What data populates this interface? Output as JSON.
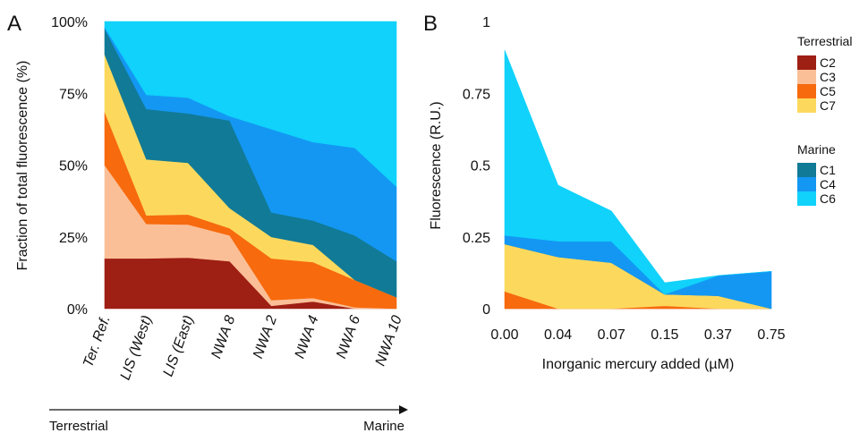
{
  "colors": {
    "C2": "#9e1f14",
    "C3": "#fbbf97",
    "C5": "#f76a0d",
    "C7": "#fcd95d",
    "C1": "#117a96",
    "C4": "#1497f3",
    "C6": "#10d2fb"
  },
  "legend": {
    "terrestrial_title": "Terrestrial",
    "marine_title": "Marine",
    "terrestrial_items": [
      "C2",
      "C3",
      "C5",
      "C7"
    ],
    "marine_items": [
      "C1",
      "C4",
      "C6"
    ]
  },
  "gradient": {
    "left": "Terrestrial",
    "right": "Marine"
  },
  "chart_data": [
    {
      "panel": "A",
      "type": "area",
      "stacked": true,
      "ylabel": "Fraction of total fluorescence (%)",
      "xlabel": "",
      "ylim": [
        0,
        100
      ],
      "ytick_labels": [
        "0%",
        "25%",
        "50%",
        "75%",
        "100%"
      ],
      "categories": [
        "Ter. Ref.",
        "LIS (West)",
        "LIS (East)",
        "NWA 8",
        "NWA 2",
        "NWA 4",
        "NWA 6",
        "NWA 10"
      ],
      "series": [
        {
          "name": "C2",
          "values": [
            17.5,
            17.5,
            17.8,
            16.5,
            1.0,
            2.5,
            0.0,
            0.0
          ]
        },
        {
          "name": "C3",
          "values": [
            32.5,
            12.0,
            11.5,
            9.0,
            2.0,
            1.2,
            0.5,
            0.0
          ]
        },
        {
          "name": "C5",
          "values": [
            18.5,
            3.0,
            3.5,
            2.5,
            14.5,
            12.5,
            9.5,
            4.0
          ]
        },
        {
          "name": "C7",
          "values": [
            20.0,
            19.5,
            18.0,
            7.0,
            7.5,
            6.0,
            0.0,
            0.0
          ]
        },
        {
          "name": "C1",
          "values": [
            9.0,
            17.5,
            17.2,
            30.5,
            8.5,
            8.5,
            15.5,
            12.5
          ]
        },
        {
          "name": "C4",
          "values": [
            0.5,
            5.0,
            5.5,
            1.5,
            29.0,
            27.3,
            30.5,
            26.0
          ]
        },
        {
          "name": "C6",
          "values": [
            2.0,
            25.5,
            26.5,
            33.0,
            37.5,
            42.0,
            44.0,
            57.5
          ]
        }
      ]
    },
    {
      "panel": "B",
      "type": "area",
      "stacked": true,
      "ylabel": "Fluorescence (R.U.)",
      "xlabel": "Inorganic mercury added (µM)",
      "ylim": [
        0,
        1
      ],
      "ytick_labels": [
        "0",
        "0.25",
        "0.5",
        "0.75",
        "1"
      ],
      "categories": [
        "0.00",
        "0.04",
        "0.07",
        "0.15",
        "0.37",
        "0.75"
      ],
      "series": [
        {
          "name": "C2",
          "values": [
            0.0,
            0.0,
            0.0,
            0.0,
            0.0,
            0.0
          ]
        },
        {
          "name": "C3",
          "values": [
            0.0,
            0.0,
            0.0,
            0.0,
            0.0,
            0.0
          ]
        },
        {
          "name": "C5",
          "values": [
            0.06,
            0.0,
            0.0,
            0.01,
            0.0,
            0.0
          ]
        },
        {
          "name": "C7",
          "values": [
            0.165,
            0.18,
            0.16,
            0.04,
            0.045,
            0.0
          ]
        },
        {
          "name": "C1",
          "values": [
            0.0,
            0.0,
            0.0,
            0.0,
            0.0,
            0.0
          ]
        },
        {
          "name": "C4",
          "values": [
            0.03,
            0.055,
            0.075,
            0.0,
            0.07,
            0.13
          ]
        },
        {
          "name": "C6",
          "values": [
            0.645,
            0.195,
            0.105,
            0.04,
            0.0,
            0.0
          ]
        }
      ]
    }
  ]
}
